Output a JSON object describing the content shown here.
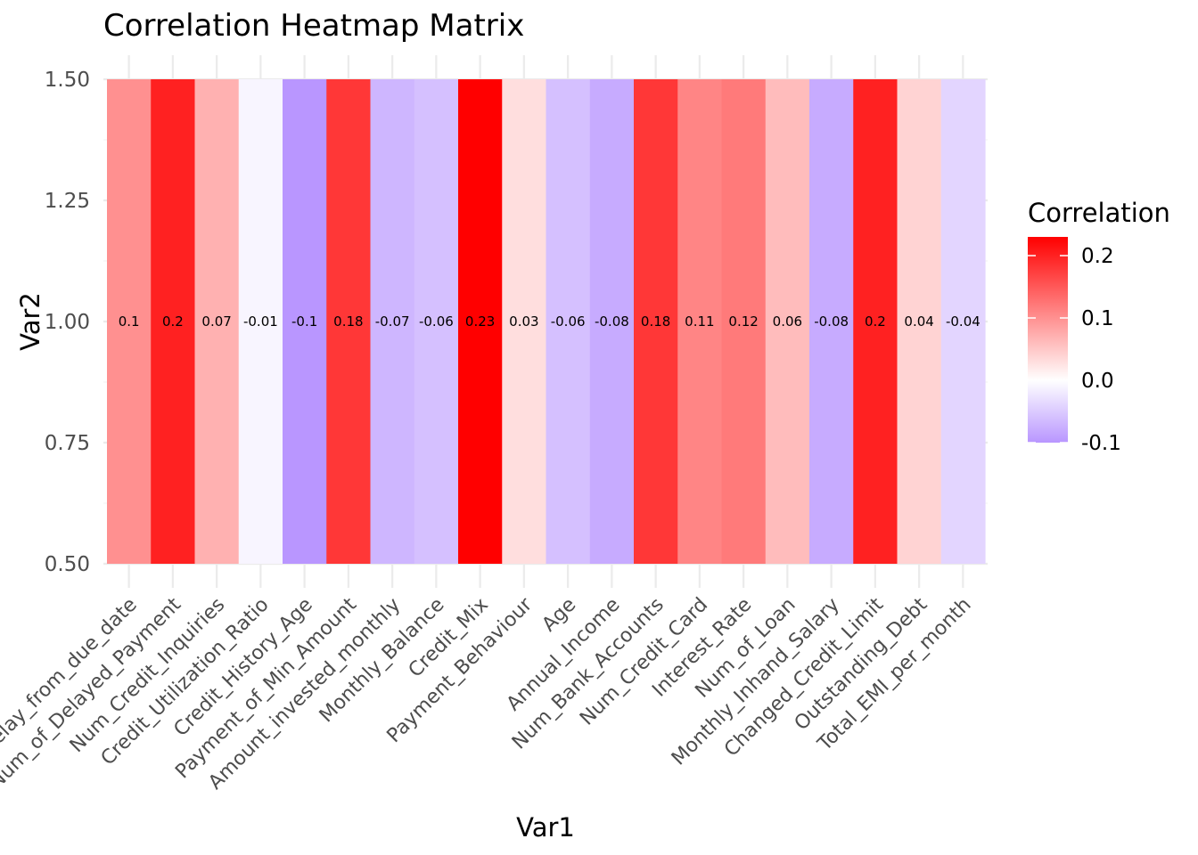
{
  "chart_data": {
    "type": "heatmap",
    "title": "Correlation Heatmap Matrix",
    "xlabel": "Var1",
    "ylabel": "Var2",
    "categories": [
      "Delay_from_due_date",
      "Num_of_Delayed_Payment",
      "Num_Credit_Inquiries",
      "Credit_Utilization_Ratio",
      "Credit_History_Age",
      "Payment_of_Min_Amount",
      "Amount_invested_monthly",
      "Monthly_Balance",
      "Credit_Mix",
      "Payment_Behaviour",
      "Age",
      "Annual_Income",
      "Num_Bank_Accounts",
      "Num_Credit_Card",
      "Interest_Rate",
      "Num_of_Loan",
      "Monthly_Inhand_Salary",
      "Changed_Credit_Limit",
      "Outstanding_Debt",
      "Total_EMI_per_month"
    ],
    "values": [
      0.1,
      0.2,
      0.07,
      -0.01,
      -0.1,
      0.18,
      -0.07,
      -0.06,
      0.23,
      0.03,
      -0.06,
      -0.08,
      0.18,
      0.11,
      0.12,
      0.06,
      -0.08,
      0.2,
      0.04,
      -0.04
    ],
    "value_labels": [
      "0.1",
      "0.2",
      "0.07",
      "-0.01",
      "-0.1",
      "0.18",
      "-0.07",
      "-0.06",
      "0.23",
      "0.03",
      "-0.06",
      "-0.08",
      "0.18",
      "0.11",
      "0.12",
      "0.06",
      "-0.08",
      "0.2",
      "0.04",
      "-0.04"
    ],
    "y_value": 1.0,
    "ylim": [
      0.5,
      1.5
    ],
    "y_ticks": [
      "0.50",
      "0.75",
      "1.00",
      "1.25",
      "1.50"
    ],
    "grid": true,
    "legend": {
      "title": "Correlation",
      "placement": "right",
      "ticks": [
        "0.2",
        "0.1",
        "0.0",
        "-0.1"
      ],
      "tick_values": [
        0.2,
        0.1,
        0.0,
        -0.1
      ],
      "range": [
        -0.1,
        0.23
      ]
    },
    "colors": {
      "low": "#b996ff",
      "mid": "#ffffff",
      "high": "#ff0000"
    }
  }
}
